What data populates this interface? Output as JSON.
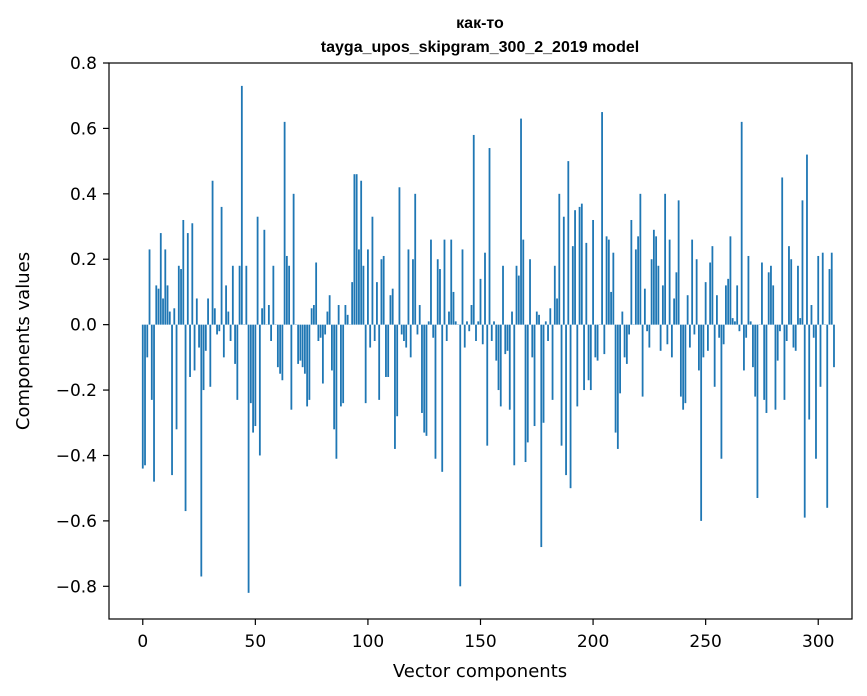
{
  "chart_data": {
    "type": "bar",
    "title_line1": "как-то",
    "title_line2": "tayga_upos_skipgram_300_2_2019 model",
    "xlabel": "Vector components",
    "ylabel": "Components values",
    "xlim": [
      -15,
      315
    ],
    "ylim": [
      -0.9,
      0.8
    ],
    "xticks": [
      0,
      50,
      100,
      150,
      200,
      250,
      300
    ],
    "xtick_labels": [
      "0",
      "50",
      "100",
      "150",
      "200",
      "250",
      "300"
    ],
    "yticks": [
      -0.8,
      -0.6,
      -0.4,
      -0.2,
      0.0,
      0.2,
      0.4,
      0.6,
      0.8
    ],
    "ytick_labels": [
      "−0.8",
      "−0.6",
      "−0.4",
      "−0.2",
      "0.0",
      "0.2",
      "0.4",
      "0.6",
      "0.8"
    ],
    "bar_color": "#1f77b4",
    "values": [
      -0.44,
      -0.43,
      -0.1,
      0.23,
      -0.23,
      -0.48,
      0.12,
      0.11,
      0.28,
      0.08,
      0.23,
      0.12,
      0.04,
      -0.46,
      0.05,
      -0.32,
      0.18,
      0.17,
      0.32,
      -0.57,
      0.28,
      -0.16,
      0.31,
      -0.14,
      0.08,
      -0.07,
      -0.77,
      -0.2,
      -0.08,
      0.08,
      -0.19,
      0.44,
      0.05,
      -0.03,
      -0.02,
      0.36,
      -0.1,
      0.12,
      0.04,
      -0.05,
      0.18,
      -0.12,
      -0.23,
      0.18,
      0.73,
      0.0,
      0.18,
      -0.82,
      -0.24,
      -0.33,
      -0.31,
      0.33,
      -0.4,
      0.05,
      0.29,
      0.0,
      0.06,
      -0.05,
      0.18,
      0.0,
      -0.13,
      -0.15,
      -0.17,
      0.62,
      0.21,
      0.18,
      -0.26,
      0.4,
      0.0,
      -0.12,
      -0.11,
      -0.13,
      -0.15,
      -0.25,
      -0.23,
      0.05,
      0.06,
      0.19,
      -0.05,
      -0.04,
      -0.18,
      -0.03,
      0.04,
      0.09,
      -0.14,
      -0.32,
      -0.41,
      0.06,
      -0.25,
      -0.24,
      0.06,
      0.03,
      0.0,
      0.13,
      0.46,
      0.46,
      0.23,
      0.44,
      0.18,
      -0.24,
      0.23,
      -0.07,
      0.33,
      -0.05,
      0.13,
      -0.23,
      0.2,
      0.21,
      -0.16,
      -0.16,
      0.09,
      0.11,
      -0.38,
      -0.28,
      0.42,
      -0.03,
      -0.05,
      -0.07,
      0.23,
      -0.1,
      0.2,
      0.4,
      -0.03,
      0.06,
      -0.27,
      -0.33,
      -0.34,
      0.01,
      0.26,
      -0.04,
      -0.41,
      0.2,
      0.17,
      -0.45,
      0.26,
      -0.05,
      0.04,
      0.26,
      0.1,
      0.01,
      0.0,
      -0.8,
      0.23,
      -0.07,
      0.01,
      -0.02,
      0.06,
      0.58,
      -0.05,
      0.01,
      0.14,
      -0.06,
      0.22,
      -0.37,
      0.54,
      -0.05,
      0.01,
      -0.11,
      -0.2,
      -0.25,
      0.18,
      -0.09,
      -0.08,
      -0.26,
      0.04,
      -0.43,
      0.18,
      0.15,
      0.63,
      0.26,
      -0.42,
      -0.36,
      0.2,
      -0.1,
      -0.31,
      0.04,
      0.03,
      -0.68,
      -0.3,
      0.01,
      -0.05,
      0.05,
      -0.23,
      0.18,
      0.08,
      0.4,
      -0.37,
      0.33,
      -0.46,
      0.5,
      -0.5,
      0.24,
      0.35,
      -0.25,
      0.36,
      0.37,
      -0.2,
      0.25,
      -0.17,
      -0.2,
      0.32,
      -0.1,
      -0.11,
      0.0,
      0.65,
      -0.09,
      0.27,
      0.26,
      0.1,
      0.22,
      -0.33,
      -0.38,
      -0.21,
      0.04,
      -0.1,
      -0.12,
      -0.03,
      0.32,
      0.0,
      0.23,
      0.27,
      0.4,
      -0.22,
      0.11,
      -0.02,
      -0.07,
      0.2,
      0.29,
      0.27,
      0.18,
      -0.08,
      0.12,
      0.4,
      -0.06,
      0.26,
      -0.1,
      0.08,
      0.16,
      0.38,
      -0.22,
      -0.26,
      -0.24,
      0.09,
      -0.07,
      0.26,
      -0.03,
      0.2,
      -0.14,
      -0.6,
      -0.1,
      0.13,
      -0.08,
      0.19,
      0.24,
      -0.19,
      0.09,
      -0.04,
      -0.41,
      -0.06,
      0.12,
      0.14,
      0.27,
      0.02,
      0.01,
      0.12,
      -0.02,
      0.62,
      -0.14,
      -0.04,
      0.21,
      0.01,
      -0.13,
      -0.22,
      -0.53,
      0.0,
      0.19,
      -0.23,
      -0.27,
      0.16,
      0.18,
      0.12,
      -0.26,
      -0.11,
      -0.02,
      0.45,
      -0.23,
      -0.05,
      0.24,
      0.2,
      -0.07,
      -0.08,
      0.18,
      0.02,
      0.38,
      -0.59,
      0.52,
      -0.29,
      0.06,
      -0.04,
      -0.41,
      0.21,
      -0.19,
      0.22,
      0.0,
      -0.56,
      0.17,
      0.22,
      -0.13
    ]
  }
}
